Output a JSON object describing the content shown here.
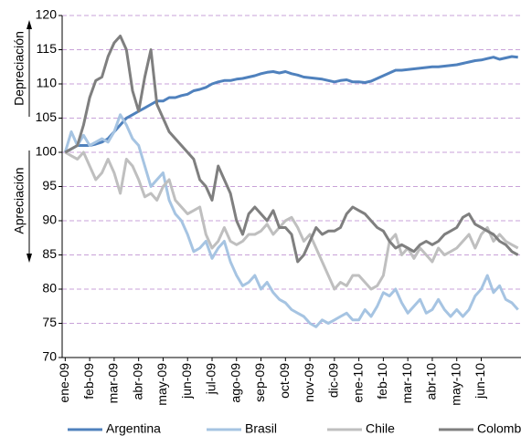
{
  "chart_data": {
    "type": "line",
    "annotations": [
      "Depreciación",
      "Apreciación"
    ],
    "categories": [
      "ene-09",
      null,
      null,
      null,
      "feb-09",
      null,
      null,
      null,
      "mar-09",
      null,
      null,
      null,
      "abr-09",
      null,
      null,
      null,
      "may-09",
      null,
      null,
      null,
      "jun-09",
      null,
      null,
      null,
      "jul-09",
      null,
      null,
      null,
      "ago-09",
      null,
      null,
      null,
      "sep-09",
      null,
      null,
      null,
      "oct-09",
      null,
      null,
      null,
      "nov-09",
      null,
      null,
      null,
      "dic-09",
      null,
      null,
      null,
      "ene-10",
      null,
      null,
      null,
      "feb-10",
      null,
      null,
      null,
      "mar-10",
      null,
      null,
      null,
      "abr-10",
      null,
      null,
      null,
      "may-10",
      null,
      null,
      null,
      "jun-10",
      null,
      null,
      null,
      null,
      null,
      null
    ],
    "series": [
      {
        "name": "Argentina",
        "color": "#4f81bd",
        "values": [
          100,
          100.5,
          101,
          101,
          101,
          101.2,
          101.5,
          102,
          103,
          104,
          105,
          105.5,
          106,
          106.5,
          107,
          107.5,
          107.5,
          108,
          108,
          108.3,
          108.5,
          109,
          109.2,
          109.5,
          110,
          110.3,
          110.5,
          110.5,
          110.7,
          110.8,
          111,
          111.2,
          111.5,
          111.7,
          111.8,
          111.6,
          111.8,
          111.5,
          111.3,
          111,
          110.9,
          110.8,
          110.7,
          110.5,
          110.3,
          110.5,
          110.6,
          110.3,
          110.3,
          110.2,
          110.4,
          110.8,
          111.2,
          111.6,
          112,
          112,
          112.1,
          112.2,
          112.3,
          112.4,
          112.5,
          112.5,
          112.6,
          112.7,
          112.8,
          113,
          113.2,
          113.4,
          113.5,
          113.7,
          113.9,
          113.6,
          113.8,
          114,
          113.9
        ]
      },
      {
        "name": "Brasil",
        "color": "#a6c4e2",
        "values": [
          100,
          103,
          101,
          102.5,
          101,
          101.5,
          102,
          101.5,
          103,
          105.5,
          104,
          102,
          101,
          98,
          95,
          96,
          97,
          93,
          91,
          90,
          88,
          85.5,
          86,
          87,
          84.5,
          86,
          87,
          84,
          82,
          80.5,
          81,
          82,
          80,
          81,
          79.5,
          78.5,
          78,
          77,
          76.5,
          76,
          75,
          74.5,
          75.5,
          75,
          75.5,
          76,
          76.5,
          75.5,
          75.5,
          77,
          76,
          77.5,
          79.5,
          79,
          80,
          78,
          76.5,
          77.5,
          78.5,
          76.5,
          77,
          78.5,
          77,
          76,
          77,
          76,
          77,
          79,
          80,
          82,
          79.5,
          80.5,
          78.5,
          78,
          77
        ]
      },
      {
        "name": "Chile",
        "color": "#bfbfbf",
        "values": [
          100,
          99.5,
          99,
          100,
          98,
          96,
          97,
          99,
          97,
          94,
          99,
          98,
          96,
          93.5,
          94,
          93,
          95,
          96,
          93,
          92,
          91,
          91.5,
          92,
          88,
          86,
          87,
          89,
          87,
          86.5,
          87,
          88,
          88,
          88.5,
          89.5,
          88,
          89,
          90,
          90.5,
          89,
          87,
          88,
          86,
          84,
          82,
          80,
          81,
          80.5,
          82,
          82,
          81,
          80,
          80.5,
          82,
          87,
          88,
          85,
          86,
          84.5,
          86,
          85,
          84,
          86,
          85,
          85.5,
          86,
          87,
          88,
          86,
          88,
          89,
          87,
          88,
          87,
          86.5,
          86
        ]
      },
      {
        "name": "Colombia",
        "color": "#7f7f7f",
        "values": [
          100,
          100.5,
          101,
          104,
          108,
          110.5,
          111,
          114,
          116,
          117,
          115,
          109,
          106,
          111,
          115,
          107,
          105,
          103,
          102,
          101,
          100,
          99,
          96,
          95,
          93,
          98,
          96,
          94,
          90,
          88,
          91,
          92,
          91,
          90,
          91.5,
          89,
          89,
          88,
          84,
          85,
          87,
          89,
          88,
          88.5,
          88.5,
          89,
          91,
          92,
          91.5,
          91,
          90,
          89,
          88.5,
          87,
          86,
          86.5,
          86,
          85.5,
          86.5,
          87,
          86.5,
          87,
          88,
          88.5,
          89,
          90.5,
          91,
          89.5,
          89,
          88.5,
          88,
          87,
          86.5,
          85.5,
          85
        ]
      }
    ],
    "ylim": [
      70,
      120
    ],
    "yticks": [
      70,
      75,
      80,
      85,
      90,
      95,
      100,
      105,
      110,
      115,
      120
    ],
    "grid": true
  }
}
